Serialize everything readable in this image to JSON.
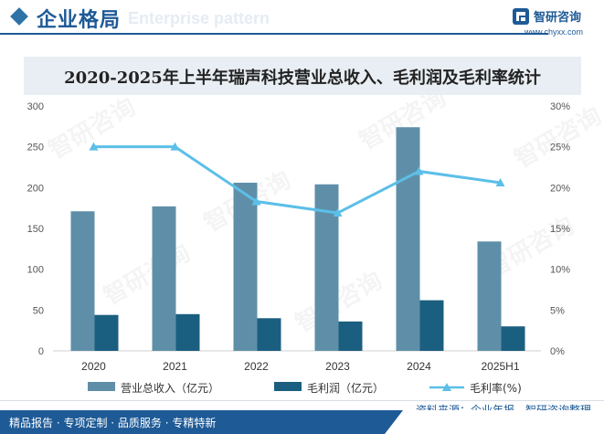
{
  "header": {
    "title": "企业格局",
    "ghost_text": "Enterprise pattern",
    "logo_name": "智研咨询",
    "logo_url": "www.chyxx.com"
  },
  "watermark": "智研咨询",
  "chart_data": {
    "type": "bar+line",
    "title": "2020-2025年上半年瑞声科技营业总收入、毛利润及毛利率统计",
    "categories": [
      "2020",
      "2021",
      "2022",
      "2023",
      "2024",
      "2025H1"
    ],
    "series": [
      {
        "name": "营业总收入（亿元）",
        "type": "bar",
        "axis": "left",
        "color": "#5f8fa8",
        "values": [
          171,
          177,
          206,
          204,
          274,
          134
        ]
      },
      {
        "name": "毛利润（亿元）",
        "type": "bar",
        "axis": "left",
        "color": "#1b5f80",
        "values": [
          44,
          45,
          40,
          36,
          62,
          30
        ]
      },
      {
        "name": "毛利率(%)",
        "type": "line",
        "axis": "right",
        "color": "#5bbfe8",
        "values": [
          25,
          25,
          18.3,
          16.9,
          22,
          20.6
        ]
      }
    ],
    "y_left": {
      "min": 0,
      "max": 300,
      "ticks": [
        0,
        50,
        100,
        150,
        200,
        250,
        300
      ]
    },
    "y_right": {
      "min": 0,
      "max": 30,
      "ticks": [
        "0%",
        "5%",
        "10%",
        "15%",
        "20%",
        "25%",
        "30%"
      ]
    },
    "legend_position": "bottom"
  },
  "footer": {
    "source": "资料来源：企业年报、智研咨询整理",
    "tagline": "精品报告 · 专项定制 · 品质服务 · 专精特新"
  }
}
